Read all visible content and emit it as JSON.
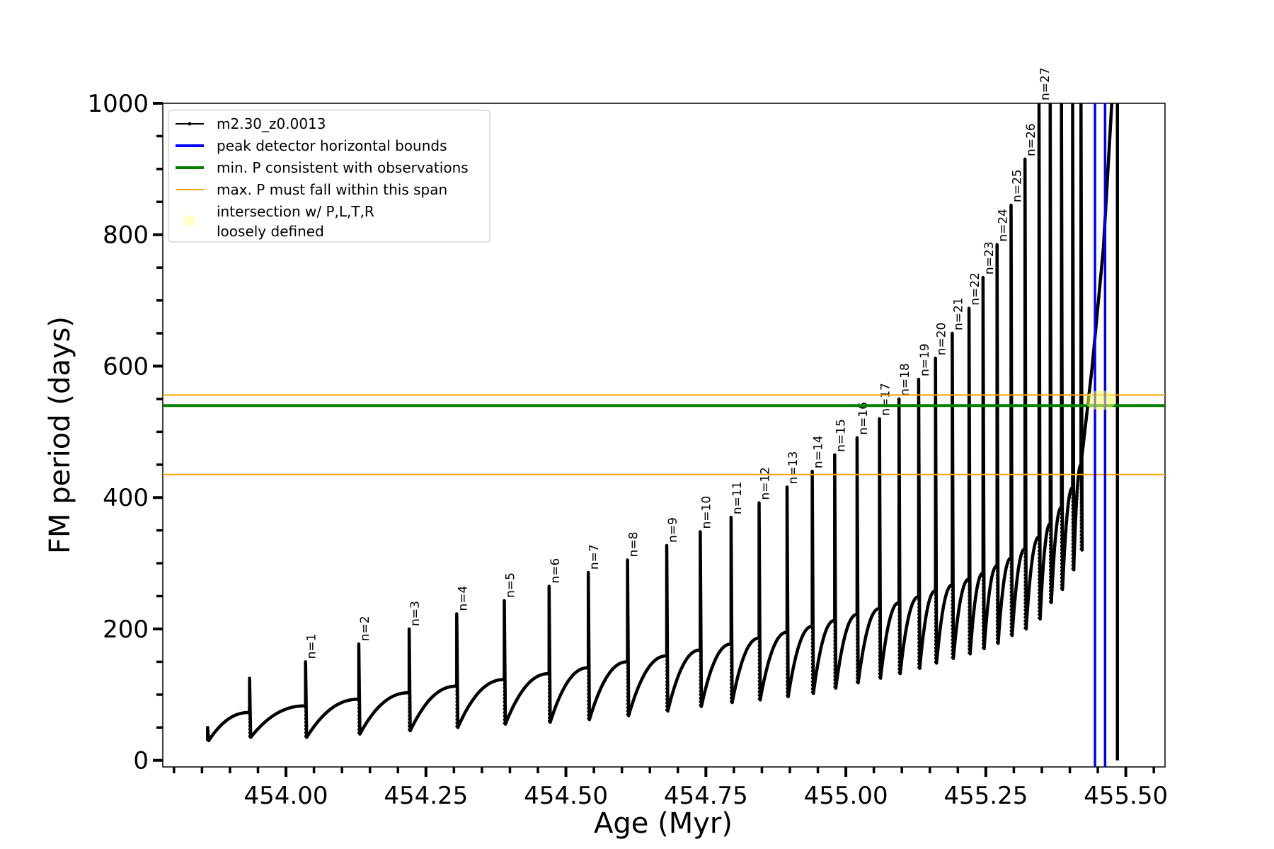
{
  "chart_data": {
    "type": "line",
    "xlabel": "Age (Myr)",
    "ylabel": "FM period (days)",
    "xlim": [
      453.78,
      455.57
    ],
    "ylim": [
      -10,
      1000
    ],
    "x_ticks": [
      454.0,
      454.25,
      454.5,
      454.75,
      455.0,
      455.25,
      455.5
    ],
    "x_tick_labels": [
      "454.00",
      "454.25",
      "454.50",
      "454.75",
      "455.00",
      "455.25",
      "455.50"
    ],
    "y_ticks": [
      0,
      200,
      400,
      600,
      800,
      1000
    ],
    "y_tick_labels": [
      "0",
      "200",
      "400",
      "600",
      "800",
      "1000"
    ],
    "grid": false,
    "legend_position": "top-left",
    "legend": [
      {
        "label": "m2.30_z0.0013",
        "style": "line-marker",
        "color": "#000000"
      },
      {
        "label": "peak detector horizontal bounds",
        "style": "line",
        "color": "#0000ff"
      },
      {
        "label": "min. P consistent with observations",
        "style": "line",
        "color": "#008000"
      },
      {
        "label": "max. P must fall within this span",
        "style": "line",
        "color": "#ffa500"
      },
      {
        "label": "intersection w/ P,L,T,R",
        "label2": "loosely defined",
        "style": "marker",
        "color": "#ffff99"
      }
    ],
    "series": [
      {
        "name": "m2.30_z0.0013",
        "color": "#000000",
        "pulses": [
          {
            "x": 453.86,
            "min": 30,
            "peak": 50,
            "pre": 0
          },
          {
            "x": 453.935,
            "min": 35,
            "peak": 125,
            "pre": 73
          },
          {
            "x": 454.035,
            "min": 35,
            "peak": 150,
            "pre": 83,
            "n_label": "n=1"
          },
          {
            "x": 454.13,
            "min": 40,
            "peak": 177,
            "pre": 93,
            "n_label": "n=2"
          },
          {
            "x": 454.22,
            "min": 45,
            "peak": 200,
            "pre": 103,
            "n_label": "n=3"
          },
          {
            "x": 454.305,
            "min": 50,
            "peak": 223,
            "pre": 113,
            "n_label": "n=4"
          },
          {
            "x": 454.39,
            "min": 55,
            "peak": 243,
            "pre": 123,
            "n_label": "n=5"
          },
          {
            "x": 454.47,
            "min": 58,
            "peak": 265,
            "pre": 132,
            "n_label": "n=6"
          },
          {
            "x": 454.54,
            "min": 62,
            "peak": 286,
            "pre": 141,
            "n_label": "n=7"
          },
          {
            "x": 454.61,
            "min": 68,
            "peak": 305,
            "pre": 150,
            "n_label": "n=8"
          },
          {
            "x": 454.68,
            "min": 75,
            "peak": 327,
            "pre": 159,
            "n_label": "n=9"
          },
          {
            "x": 454.74,
            "min": 82,
            "peak": 348,
            "pre": 168,
            "n_label": "n=10"
          },
          {
            "x": 454.795,
            "min": 88,
            "peak": 370,
            "pre": 177,
            "n_label": "n=11"
          },
          {
            "x": 454.845,
            "min": 92,
            "peak": 392,
            "pre": 186,
            "n_label": "n=12"
          },
          {
            "x": 454.895,
            "min": 97,
            "peak": 416,
            "pre": 195,
            "n_label": "n=13"
          },
          {
            "x": 454.94,
            "min": 102,
            "peak": 440,
            "pre": 204,
            "n_label": "n=14"
          },
          {
            "x": 454.98,
            "min": 110,
            "peak": 465,
            "pre": 213,
            "n_label": "n=15"
          },
          {
            "x": 455.02,
            "min": 118,
            "peak": 491,
            "pre": 222,
            "n_label": "n=16"
          },
          {
            "x": 455.06,
            "min": 125,
            "peak": 520,
            "pre": 231,
            "n_label": "n=17"
          },
          {
            "x": 455.095,
            "min": 132,
            "peak": 550,
            "pre": 240,
            "n_label": "n=18"
          },
          {
            "x": 455.13,
            "min": 140,
            "peak": 580,
            "pre": 249,
            "n_label": "n=19"
          },
          {
            "x": 455.16,
            "min": 148,
            "peak": 612,
            "pre": 258,
            "n_label": "n=20"
          },
          {
            "x": 455.19,
            "min": 155,
            "peak": 650,
            "pre": 267,
            "n_label": "n=21"
          },
          {
            "x": 455.22,
            "min": 162,
            "peak": 688,
            "pre": 276,
            "n_label": "n=22"
          },
          {
            "x": 455.245,
            "min": 170,
            "peak": 735,
            "pre": 285,
            "n_label": "n=23"
          },
          {
            "x": 455.27,
            "min": 178,
            "peak": 785,
            "pre": 296,
            "n_label": "n=24"
          },
          {
            "x": 455.295,
            "min": 190,
            "peak": 845,
            "pre": 308,
            "n_label": "n=25"
          },
          {
            "x": 455.32,
            "min": 200,
            "peak": 915,
            "pre": 322,
            "n_label": "n=26"
          },
          {
            "x": 455.345,
            "min": 215,
            "peak": 1000,
            "pre": 340,
            "n_label": "n=27"
          },
          {
            "x": 455.365,
            "min": 240,
            "peak": 1000,
            "pre": 360
          },
          {
            "x": 455.385,
            "min": 260,
            "peak": 1000,
            "pre": 385
          },
          {
            "x": 455.405,
            "min": 290,
            "peak": 1000,
            "pre": 415
          },
          {
            "x": 455.42,
            "min": 320,
            "peak": 1000,
            "pre": 450
          }
        ],
        "final_rise": [
          [
            455.42,
            450
          ],
          [
            455.44,
            600
          ],
          [
            455.46,
            780
          ],
          [
            455.475,
            1000
          ]
        ],
        "final_drop": {
          "x": 455.485,
          "top": 1000,
          "bottom": 0
        }
      }
    ],
    "reference_lines": {
      "vertical_blue": [
        455.445,
        455.463
      ],
      "horizontal_green": 540,
      "horizontal_orange": [
        556,
        435
      ]
    },
    "intersection": {
      "x": 455.455,
      "y": 548
    }
  }
}
